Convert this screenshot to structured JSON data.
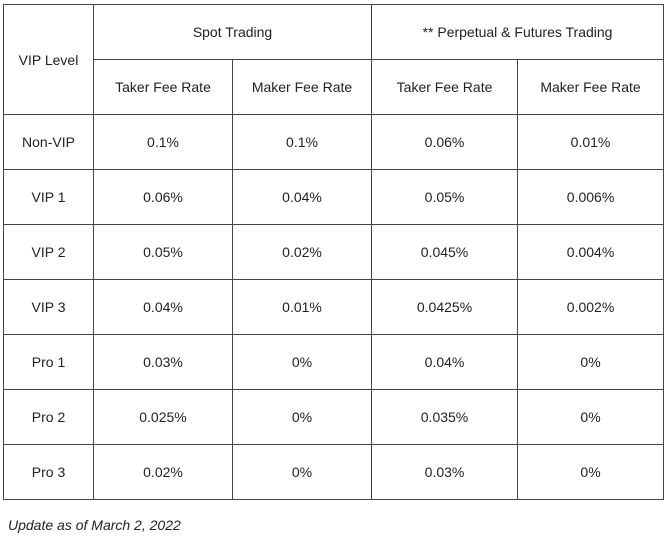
{
  "headers": {
    "vip_level": "VIP Level",
    "spot_trading": "Spot Trading",
    "perpetual_trading": "** Perpetual & Futures Trading",
    "taker_fee_rate": "Taker Fee Rate",
    "maker_fee_rate": "Maker Fee Rate"
  },
  "rows": [
    {
      "level": "Non-VIP",
      "spot_taker": "0.1%",
      "spot_maker": "0.1%",
      "perp_taker": "0.06%",
      "perp_maker": "0.01%"
    },
    {
      "level": "VIP 1",
      "spot_taker": "0.06%",
      "spot_maker": "0.04%",
      "perp_taker": "0.05%",
      "perp_maker": "0.006%"
    },
    {
      "level": "VIP 2",
      "spot_taker": "0.05%",
      "spot_maker": "0.02%",
      "perp_taker": "0.045%",
      "perp_maker": "0.004%"
    },
    {
      "level": "VIP 3",
      "spot_taker": "0.04%",
      "spot_maker": "0.01%",
      "perp_taker": "0.0425%",
      "perp_maker": "0.002%"
    },
    {
      "level": "Pro 1",
      "spot_taker": "0.03%",
      "spot_maker": "0%",
      "perp_taker": "0.04%",
      "perp_maker": "0%"
    },
    {
      "level": "Pro 2",
      "spot_taker": "0.025%",
      "spot_maker": "0%",
      "perp_taker": "0.035%",
      "perp_maker": "0%"
    },
    {
      "level": "Pro 3",
      "spot_taker": "0.02%",
      "spot_maker": "0%",
      "perp_taker": "0.03%",
      "perp_maker": "0%"
    }
  ],
  "footnote": "Update as of March 2, 2022"
}
